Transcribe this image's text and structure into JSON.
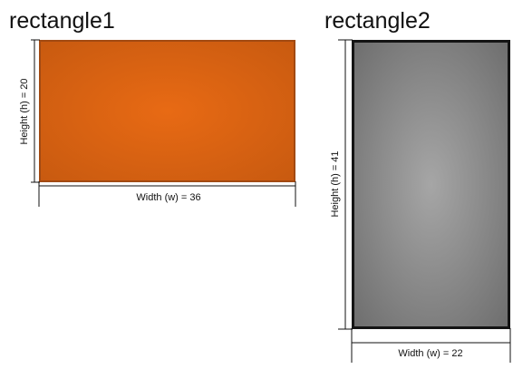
{
  "rectangle1": {
    "title": "rectangle1",
    "width_label": "Width (w) = 36",
    "height_label": "Height (h) = 20",
    "fill_center": "#e86a14",
    "fill_edge": "#c85a10",
    "border_color": "#a24a12"
  },
  "rectangle2": {
    "title": "rectangle2",
    "width_label": "Width (w) = 22",
    "height_label": "Height (h) = 41",
    "fill_center": "#a6a6a6",
    "fill_edge": "#6e6e6e",
    "border_color": "#141414"
  }
}
